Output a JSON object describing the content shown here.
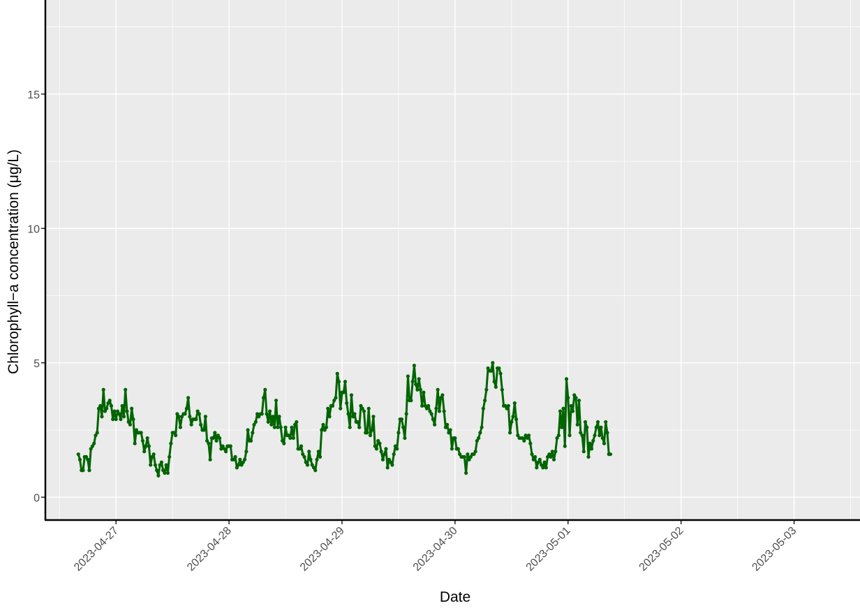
{
  "chart_data": {
    "type": "line",
    "title": "",
    "xlabel": "Date",
    "ylabel": "Chlorophyll−a concentration (μg/L)",
    "xlim": [
      "2023-04-26T09:00",
      "2023-05-03T14:00"
    ],
    "ylim": [
      -0.85,
      18.5
    ],
    "x_ticks": [
      "2023-04-27",
      "2023-04-28",
      "2023-04-29",
      "2023-04-30",
      "2023-05-01",
      "2023-05-02",
      "2023-05-03"
    ],
    "y_ticks": [
      0,
      5,
      10,
      15
    ],
    "grid": true,
    "series_color": "#006400",
    "panel_color": "#ebebeb",
    "grid_color": "#ffffff",
    "series": [
      {
        "x_start": "2023-04-26T16:00",
        "step_minutes": 20,
        "values": [
          1.6,
          1.4,
          1.0,
          1.0,
          1.5,
          1.5,
          1.4,
          1.0,
          1.8,
          1.9,
          2.0,
          2.3,
          2.4,
          3.3,
          3.4,
          3.0,
          4.0,
          3.2,
          3.3,
          3.5,
          3.6,
          3.4,
          2.9,
          3.2,
          2.9,
          3.2,
          3.1,
          2.9,
          3.4,
          3.0,
          4.0,
          3.2,
          2.8,
          2.7,
          3.3,
          2.9,
          2.0,
          2.5,
          2.4,
          2.4,
          2.4,
          2.1,
          1.7,
          1.9,
          2.2,
          1.9,
          1.2,
          1.5,
          1.6,
          1.2,
          1.0,
          0.8,
          1.2,
          1.3,
          1.0,
          0.9,
          1.2,
          0.9,
          1.5,
          2.0,
          2.4,
          2.4,
          2.3,
          3.1,
          3.0,
          2.6,
          3.0,
          3.1,
          3.1,
          3.3,
          3.7,
          3.0,
          2.7,
          2.9,
          2.9,
          2.9,
          3.2,
          3.1,
          2.7,
          2.5,
          2.5,
          3.0,
          2.1,
          2.0,
          1.4,
          2.2,
          2.2,
          2.4,
          2.1,
          2.3,
          2.2,
          1.8,
          1.9,
          1.8,
          1.7,
          1.9,
          1.9,
          1.9,
          1.4,
          1.4,
          1.5,
          1.1,
          1.2,
          1.4,
          1.2,
          1.3,
          1.4,
          1.7,
          2.5,
          2.1,
          2.1,
          2.4,
          2.7,
          2.8,
          3.1,
          3.0,
          3.1,
          3.1,
          3.7,
          4.0,
          3.1,
          2.8,
          3.2,
          2.7,
          3.0,
          2.6,
          3.6,
          2.6,
          3.0,
          2.6,
          2.1,
          2.0,
          2.6,
          2.3,
          2.3,
          2.2,
          2.6,
          2.2,
          2.7,
          2.8,
          1.8,
          1.8,
          1.9,
          1.6,
          1.5,
          1.3,
          1.2,
          1.7,
          1.4,
          1.2,
          1.1,
          1.0,
          1.4,
          1.7,
          1.5,
          2.5,
          2.7,
          2.5,
          2.6,
          3.3,
          3.0,
          3.4,
          3.4,
          3.6,
          3.7,
          4.6,
          4.3,
          3.3,
          3.9,
          3.9,
          4.3,
          3.5,
          3.1,
          2.6,
          3.8,
          3.0,
          3.1,
          2.8,
          2.8,
          2.6,
          3.4,
          3.3,
          3.2,
          2.4,
          2.4,
          3.3,
          2.3,
          2.5,
          3.0,
          1.9,
          1.8,
          2.1,
          2.0,
          1.7,
          1.4,
          1.6,
          1.8,
          1.1,
          1.4,
          1.3,
          1.2,
          1.6,
          1.9,
          1.8,
          2.4,
          2.9,
          2.9,
          2.6,
          2.2,
          3.1,
          4.5,
          3.6,
          3.6,
          4.3,
          4.9,
          4.2,
          4.0,
          4.4,
          4.0,
          3.4,
          3.9,
          3.4,
          3.3,
          3.4,
          3.2,
          3.1,
          2.9,
          2.7,
          3.3,
          4.0,
          3.2,
          3.7,
          3.8,
          3.2,
          2.6,
          2.7,
          2.4,
          2.5,
          1.8,
          2.2,
          2.2,
          1.8,
          1.8,
          1.6,
          1.5,
          1.5,
          1.5,
          0.9,
          1.6,
          1.4,
          1.5,
          1.6,
          1.6,
          1.7,
          2.1,
          2.2,
          2.4,
          2.6,
          3.3,
          3.6,
          4.0,
          4.8,
          4.7,
          4.7,
          5.0,
          4.3,
          4.1,
          4.8,
          4.8,
          4.6,
          4.0,
          3.4,
          3.4,
          3.3,
          3.4,
          2.4,
          2.8,
          3.0,
          3.5,
          2.9,
          2.3,
          2.2,
          2.2,
          2.2,
          2.1,
          2.3,
          2.2,
          2.3,
          2.0,
          1.6,
          1.4,
          1.5,
          1.1,
          1.3,
          1.4,
          1.2,
          1.1,
          1.3,
          1.1,
          1.5,
          1.6,
          1.5,
          1.7,
          1.4,
          1.7,
          2.2,
          2.3,
          3.2,
          2.6,
          3.3,
          1.9,
          4.4,
          3.7,
          2.3,
          3.4,
          3.2,
          3.8,
          3.7,
          2.7,
          3.6,
          2.4,
          2.3,
          1.7,
          2.8,
          2.6,
          1.5,
          2.0,
          1.8,
          2.1,
          2.3,
          2.6,
          2.8,
          2.3,
          2.6,
          2.2,
          2.0,
          2.8,
          2.4,
          1.6,
          1.6
        ]
      }
    ]
  }
}
